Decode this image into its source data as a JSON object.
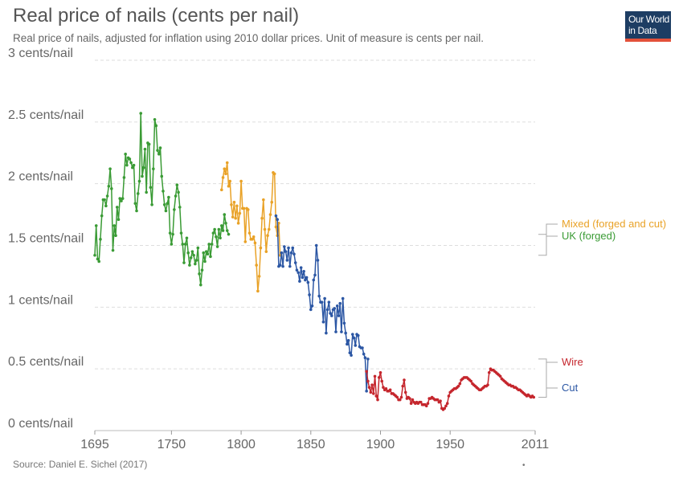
{
  "header": {
    "title": "Real price of nails (cents per nail)",
    "subtitle": "Real price of nails, adjusted for inflation using 2010 dollar prices. Unit of measure is cents per nail."
  },
  "logo": {
    "line1": "Our World",
    "line2": "in Data",
    "background": "#1d3d63",
    "accent": "#e3513a"
  },
  "footer": {
    "source": "Source: Daniel E. Sichel (2017)",
    "dot": "•"
  },
  "chart_data": {
    "type": "line",
    "title": "Real price of nails (cents per nail)",
    "ylabel": "cents per nail",
    "xlim": [
      1695,
      2011
    ],
    "ylim": [
      0,
      3
    ],
    "grid": true,
    "y_ticks": [
      {
        "value": 0,
        "label": "0 cents/nail"
      },
      {
        "value": 0.5,
        "label": "0.5 cents/nail"
      },
      {
        "value": 1,
        "label": "1 cents/nail"
      },
      {
        "value": 1.5,
        "label": "1.5 cents/nail"
      },
      {
        "value": 2,
        "label": "2 cents/nail"
      },
      {
        "value": 2.5,
        "label": "2.5 cents/nail"
      },
      {
        "value": 3,
        "label": "3 cents/nail"
      }
    ],
    "x_ticks": [
      {
        "value": 1695,
        "label": "1695"
      },
      {
        "value": 1750,
        "label": "1750"
      },
      {
        "value": 1800,
        "label": "1800"
      },
      {
        "value": 1850,
        "label": "1850"
      },
      {
        "value": 1900,
        "label": "1900"
      },
      {
        "value": 1950,
        "label": "1950"
      },
      {
        "value": 2011,
        "label": "2011"
      }
    ],
    "legend_position": "right",
    "series": [
      {
        "name": "UK (forged)",
        "color": "#3a9b35",
        "x": [
          1695,
          1696,
          1697,
          1698,
          1699,
          1700,
          1701,
          1702,
          1703,
          1704,
          1705,
          1706,
          1707,
          1708,
          1709,
          1710,
          1711,
          1712,
          1713,
          1714,
          1715,
          1716,
          1717,
          1718,
          1719,
          1720,
          1721,
          1722,
          1723,
          1724,
          1725,
          1726,
          1727,
          1728,
          1729,
          1730,
          1731,
          1732,
          1733,
          1734,
          1735,
          1736,
          1737,
          1738,
          1739,
          1740,
          1741,
          1742,
          1743,
          1744,
          1745,
          1746,
          1747,
          1748,
          1749,
          1750,
          1751,
          1752,
          1753,
          1754,
          1755,
          1756,
          1757,
          1758,
          1759,
          1760,
          1761,
          1762,
          1763,
          1764,
          1765,
          1766,
          1767,
          1768,
          1769,
          1770,
          1771,
          1772,
          1773,
          1774,
          1775,
          1776,
          1777,
          1778,
          1779,
          1780,
          1781,
          1782,
          1783,
          1784,
          1785,
          1786,
          1787,
          1788,
          1789,
          1790,
          1791
        ],
        "y": [
          1.42,
          1.66,
          1.39,
          1.37,
          1.55,
          1.74,
          1.87,
          1.87,
          1.82,
          1.9,
          1.98,
          2.12,
          1.96,
          1.46,
          1.66,
          1.58,
          1.81,
          1.71,
          1.88,
          1.86,
          1.88,
          2.05,
          2.24,
          2.15,
          2.21,
          2.2,
          2.17,
          2.13,
          2.15,
          1.84,
          1.78,
          1.92,
          2.02,
          2.57,
          2.06,
          2.13,
          2.28,
          1.93,
          2.33,
          2.32,
          1.97,
          1.83,
          2.12,
          2.52,
          2.47,
          2.27,
          2.24,
          2.29,
          2.06,
          1.94,
          1.83,
          1.78,
          1.84,
          1.89,
          1.6,
          1.51,
          1.59,
          1.79,
          1.9,
          1.99,
          1.93,
          1.81,
          1.6,
          1.51,
          1.36,
          1.51,
          1.56,
          1.44,
          1.34,
          1.4,
          1.45,
          1.42,
          1.35,
          1.38,
          1.48,
          1.27,
          1.18,
          1.3,
          1.44,
          1.37,
          1.45,
          1.43,
          1.51,
          1.41,
          1.51,
          1.6,
          1.63,
          1.57,
          1.49,
          1.63,
          1.56,
          1.66,
          1.62,
          1.75,
          1.68,
          1.62,
          1.59
        ]
      },
      {
        "name": "Mixed (forged and cut)",
        "color": "#e9a227",
        "x": [
          1786,
          1787,
          1788,
          1789,
          1790,
          1791,
          1792,
          1793,
          1794,
          1795,
          1796,
          1797,
          1798,
          1799,
          1800,
          1801,
          1802,
          1803,
          1804,
          1805,
          1806,
          1807,
          1808,
          1809,
          1810,
          1811,
          1812,
          1813,
          1814,
          1815,
          1816,
          1817,
          1818,
          1819,
          1820,
          1821,
          1822,
          1823,
          1824,
          1825,
          1826,
          1827,
          1828
        ],
        "y": [
          1.95,
          2.05,
          2.12,
          2.08,
          2.17,
          1.98,
          2.02,
          1.83,
          1.73,
          1.85,
          1.72,
          1.82,
          1.68,
          1.76,
          2.02,
          1.8,
          1.8,
          1.53,
          1.8,
          1.79,
          1.6,
          1.55,
          1.55,
          1.57,
          1.52,
          1.34,
          1.13,
          1.25,
          1.48,
          1.72,
          1.87,
          1.63,
          1.45,
          1.58,
          1.63,
          1.75,
          1.85,
          2.09,
          2.08,
          1.65,
          1.58,
          1.68,
          1.42
        ]
      },
      {
        "name": "Cut",
        "color": "#2c57a4",
        "x": [
          1825,
          1826,
          1827,
          1828,
          1829,
          1830,
          1831,
          1832,
          1833,
          1834,
          1835,
          1836,
          1837,
          1838,
          1839,
          1840,
          1841,
          1842,
          1843,
          1844,
          1845,
          1846,
          1847,
          1848,
          1849,
          1850,
          1851,
          1852,
          1853,
          1854,
          1855,
          1856,
          1857,
          1858,
          1859,
          1860,
          1861,
          1862,
          1863,
          1864,
          1865,
          1866,
          1867,
          1868,
          1869,
          1870,
          1871,
          1872,
          1873,
          1874,
          1875,
          1876,
          1877,
          1878,
          1879,
          1880,
          1881,
          1882,
          1883,
          1884,
          1885,
          1886,
          1887,
          1888,
          1889,
          1890,
          1891
        ],
        "y": [
          1.74,
          1.71,
          1.33,
          1.34,
          1.44,
          1.33,
          1.49,
          1.45,
          1.38,
          1.48,
          1.33,
          1.44,
          1.48,
          1.43,
          1.36,
          1.3,
          1.28,
          1.21,
          1.32,
          1.24,
          1.29,
          1.22,
          1.24,
          1.2,
          1.1,
          0.98,
          1.01,
          1.22,
          1.26,
          1.5,
          1.38,
          1.09,
          1.04,
          1.04,
          0.88,
          1.07,
          0.79,
          0.98,
          1.04,
          0.95,
          0.93,
          0.98,
          0.99,
          0.8,
          1.01,
          0.93,
          1.03,
          0.8,
          1.07,
          0.87,
          0.79,
          0.7,
          0.73,
          0.63,
          0.61,
          0.78,
          0.75,
          0.69,
          0.78,
          0.77,
          0.68,
          0.67,
          0.67,
          0.62,
          0.59,
          0.32,
          0.58
        ]
      },
      {
        "name": "Wire",
        "color": "#c5262d",
        "x": [
          1890,
          1891,
          1892,
          1893,
          1894,
          1895,
          1896,
          1897,
          1898,
          1899,
          1900,
          1901,
          1902,
          1903,
          1904,
          1905,
          1906,
          1907,
          1908,
          1909,
          1910,
          1911,
          1912,
          1913,
          1914,
          1915,
          1916,
          1917,
          1918,
          1919,
          1920,
          1921,
          1922,
          1923,
          1924,
          1925,
          1926,
          1927,
          1928,
          1929,
          1930,
          1931,
          1932,
          1933,
          1934,
          1935,
          1936,
          1937,
          1938,
          1939,
          1940,
          1941,
          1942,
          1943,
          1944,
          1945,
          1946,
          1947,
          1948,
          1949,
          1950,
          1951,
          1952,
          1953,
          1954,
          1955,
          1956,
          1957,
          1958,
          1959,
          1960,
          1961,
          1962,
          1963,
          1964,
          1965,
          1966,
          1967,
          1968,
          1969,
          1970,
          1971,
          1972,
          1973,
          1974,
          1975,
          1976,
          1977,
          1978,
          1979,
          1980,
          1981,
          1982,
          1983,
          1984,
          1985,
          1986,
          1987,
          1988,
          1989,
          1990,
          1991,
          1992,
          1993,
          1994,
          1995,
          1996,
          1997,
          1998,
          1999,
          2000,
          2001,
          2002,
          2003,
          2004,
          2005,
          2006,
          2007,
          2008,
          2009,
          2010
        ],
        "y": [
          0.48,
          0.4,
          0.35,
          0.31,
          0.37,
          0.3,
          0.44,
          0.28,
          0.25,
          0.43,
          0.47,
          0.4,
          0.35,
          0.33,
          0.34,
          0.32,
          0.32,
          0.33,
          0.3,
          0.3,
          0.29,
          0.28,
          0.27,
          0.25,
          0.25,
          0.27,
          0.36,
          0.41,
          0.31,
          0.26,
          0.27,
          0.26,
          0.22,
          0.25,
          0.23,
          0.22,
          0.23,
          0.22,
          0.23,
          0.23,
          0.21,
          0.21,
          0.21,
          0.2,
          0.22,
          0.26,
          0.26,
          0.27,
          0.26,
          0.25,
          0.25,
          0.25,
          0.23,
          0.24,
          0.18,
          0.17,
          0.18,
          0.2,
          0.22,
          0.28,
          0.31,
          0.32,
          0.33,
          0.34,
          0.34,
          0.35,
          0.36,
          0.38,
          0.41,
          0.42,
          0.43,
          0.43,
          0.43,
          0.42,
          0.41,
          0.4,
          0.38,
          0.37,
          0.36,
          0.35,
          0.34,
          0.33,
          0.33,
          0.34,
          0.35,
          0.36,
          0.36,
          0.37,
          0.47,
          0.5,
          0.49,
          0.49,
          0.48,
          0.47,
          0.46,
          0.45,
          0.44,
          0.42,
          0.41,
          0.4,
          0.39,
          0.38,
          0.37,
          0.37,
          0.36,
          0.36,
          0.35,
          0.35,
          0.34,
          0.33,
          0.33,
          0.32,
          0.31,
          0.3,
          0.29,
          0.28,
          0.29,
          0.28,
          0.27,
          0.28,
          0.27
        ]
      }
    ],
    "legend_order": [
      "Mixed (forged and cut)",
      "UK (forged)",
      "Wire",
      "Cut"
    ]
  }
}
